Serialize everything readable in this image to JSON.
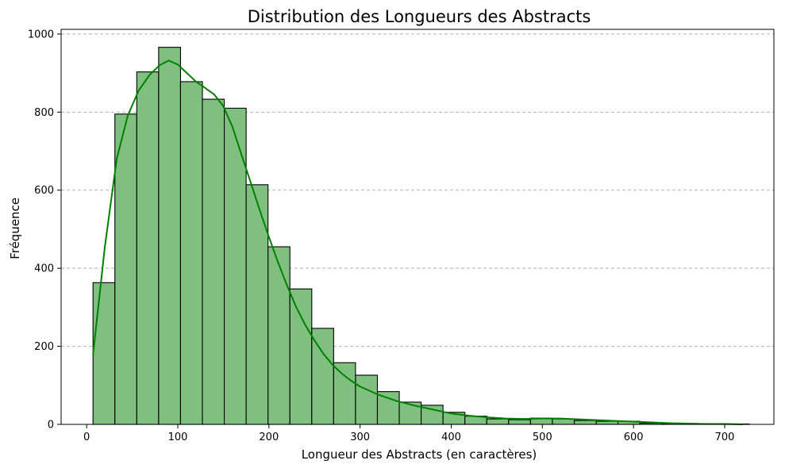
{
  "chart_data": {
    "type": "histogram",
    "title": "Distribution des Longueurs des Abstracts",
    "xlabel": "Longueur des Abstracts (en caractères)",
    "ylabel": "Fréquence",
    "xlim": [
      -28,
      754
    ],
    "ylim": [
      0,
      1012
    ],
    "xticks": [
      0,
      100,
      200,
      300,
      400,
      500,
      600,
      700
    ],
    "yticks": [
      0,
      200,
      400,
      600,
      800,
      1000
    ],
    "grid": "y-dashed",
    "colors": {
      "bar_fill": "#7fbf7f",
      "bar_edge": "#000000",
      "kde": "#008000",
      "grid": "#b0b0b0"
    },
    "bins": [
      {
        "x0": 7,
        "x1": 31,
        "count": 363
      },
      {
        "x0": 31,
        "x1": 55,
        "count": 795
      },
      {
        "x0": 55,
        "x1": 79,
        "count": 903
      },
      {
        "x0": 79,
        "x1": 103,
        "count": 966
      },
      {
        "x0": 103,
        "x1": 127,
        "count": 878
      },
      {
        "x0": 127,
        "x1": 151,
        "count": 833
      },
      {
        "x0": 151,
        "x1": 175,
        "count": 810
      },
      {
        "x0": 175,
        "x1": 199,
        "count": 614
      },
      {
        "x0": 199,
        "x1": 223,
        "count": 455
      },
      {
        "x0": 223,
        "x1": 247,
        "count": 347
      },
      {
        "x0": 247,
        "x1": 271,
        "count": 246
      },
      {
        "x0": 271,
        "x1": 295,
        "count": 158
      },
      {
        "x0": 295,
        "x1": 319,
        "count": 126
      },
      {
        "x0": 319,
        "x1": 343,
        "count": 84
      },
      {
        "x0": 343,
        "x1": 367,
        "count": 57
      },
      {
        "x0": 367,
        "x1": 391,
        "count": 49
      },
      {
        "x0": 391,
        "x1": 415,
        "count": 31
      },
      {
        "x0": 415,
        "x1": 439,
        "count": 21
      },
      {
        "x0": 439,
        "x1": 463,
        "count": 14
      },
      {
        "x0": 463,
        "x1": 487,
        "count": 12
      },
      {
        "x0": 487,
        "x1": 511,
        "count": 16
      },
      {
        "x0": 511,
        "x1": 535,
        "count": 14
      },
      {
        "x0": 535,
        "x1": 559,
        "count": 10
      },
      {
        "x0": 559,
        "x1": 583,
        "count": 8
      },
      {
        "x0": 583,
        "x1": 607,
        "count": 8
      },
      {
        "x0": 607,
        "x1": 631,
        "count": 3
      },
      {
        "x0": 631,
        "x1": 655,
        "count": 2
      },
      {
        "x0": 655,
        "x1": 679,
        "count": 1
      },
      {
        "x0": 679,
        "x1": 703,
        "count": 1
      },
      {
        "x0": 703,
        "x1": 727,
        "count": 1
      }
    ],
    "kde": {
      "x": [
        7,
        20,
        33,
        45,
        57,
        69,
        80,
        90,
        100,
        110,
        120,
        130,
        140,
        150,
        160,
        170,
        180,
        190,
        200,
        210,
        220,
        230,
        240,
        250,
        260,
        270,
        280,
        290,
        300,
        320,
        340,
        360,
        380,
        400,
        420,
        440,
        460,
        480,
        500,
        520,
        540,
        560,
        580,
        600,
        620,
        640,
        660,
        680,
        700,
        720
      ],
      "y": [
        178,
        455,
        680,
        790,
        855,
        895,
        920,
        932,
        922,
        900,
        878,
        862,
        845,
        815,
        762,
        690,
        620,
        548,
        480,
        415,
        355,
        300,
        254,
        215,
        180,
        152,
        130,
        112,
        97,
        76,
        60,
        48,
        38,
        28,
        22,
        18,
        15,
        14,
        15,
        15,
        13,
        11,
        9,
        7,
        5,
        3,
        2,
        1,
        1,
        0
      ]
    }
  }
}
